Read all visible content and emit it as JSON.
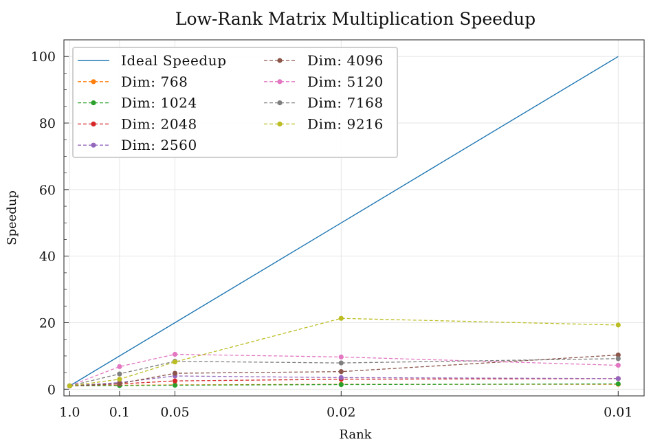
{
  "chart_data": {
    "type": "line",
    "title": "Low-Rank Matrix Multiplication Speedup",
    "xlabel": "Rank",
    "ylabel": "Speedup",
    "x": [
      1.0,
      0.1,
      0.05,
      0.02,
      0.01
    ],
    "x_tick_labels": [
      "1.0",
      "0.1",
      "0.05",
      "0.02",
      "0.01"
    ],
    "x_scale": "reciprocal",
    "ylim": [
      -2,
      105
    ],
    "y_ticks": [
      0,
      20,
      40,
      60,
      80,
      100
    ],
    "y_tick_labels": [
      "0",
      "20",
      "40",
      "60",
      "80",
      "100"
    ],
    "grid": true,
    "legend_position": "top-left",
    "legend_columns": 2,
    "series": [
      {
        "name": "Ideal Speedup",
        "values": [
          1,
          10,
          20,
          50,
          100
        ],
        "color": "#1f77b4",
        "style": "solid",
        "markers": false
      },
      {
        "name": "Dim: 768",
        "values": [
          1.0,
          1.2,
          1.3,
          1.5,
          1.5
        ],
        "color": "#ff7f0e",
        "style": "dashed",
        "markers": true
      },
      {
        "name": "Dim: 1024",
        "values": [
          1.0,
          1.1,
          1.2,
          1.4,
          1.6
        ],
        "color": "#2ca02c",
        "style": "dashed",
        "markers": true
      },
      {
        "name": "Dim: 2048",
        "values": [
          1.0,
          1.6,
          2.5,
          3.0,
          3.2
        ],
        "color": "#d62728",
        "style": "dashed",
        "markers": true
      },
      {
        "name": "Dim: 2560",
        "values": [
          1.0,
          2.0,
          4.0,
          3.5,
          3.2
        ],
        "color": "#9467bd",
        "style": "dashed",
        "markers": true
      },
      {
        "name": "Dim: 4096",
        "values": [
          1.0,
          1.7,
          4.8,
          5.3,
          10.3
        ],
        "color": "#8c564b",
        "style": "dashed",
        "markers": true
      },
      {
        "name": "Dim: 5120",
        "values": [
          1.0,
          6.8,
          10.5,
          9.7,
          7.2
        ],
        "color": "#e377c2",
        "style": "dashed",
        "markers": true
      },
      {
        "name": "Dim: 7168",
        "values": [
          1.0,
          4.6,
          8.4,
          7.9,
          9.2
        ],
        "color": "#7f7f7f",
        "style": "dashed",
        "markers": true
      },
      {
        "name": "Dim: 9216",
        "values": [
          1.0,
          3.0,
          8.2,
          21.3,
          19.3
        ],
        "color": "#bcbd22",
        "style": "dashed",
        "markers": true
      }
    ]
  }
}
